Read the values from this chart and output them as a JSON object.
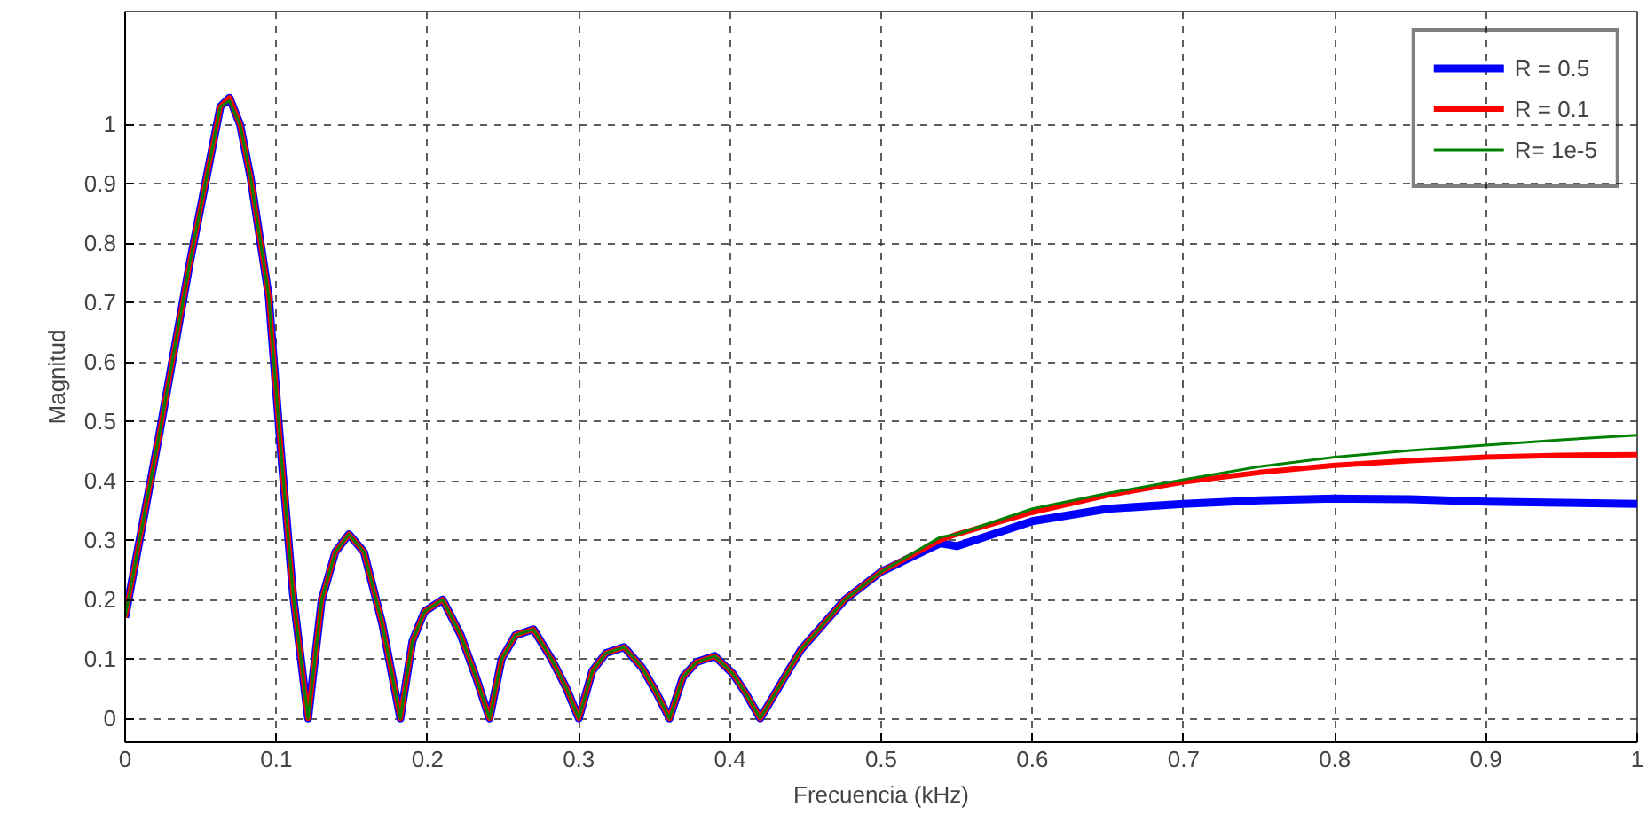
{
  "chart_data": {
    "type": "line",
    "xlabel": "Frecuencia (kHz)",
    "ylabel": "Magnitud",
    "xlim": [
      0,
      1
    ],
    "ylim": [
      -0.04,
      1.19
    ],
    "xticks": [
      0,
      0.1,
      0.2,
      0.3,
      0.4,
      0.5,
      0.6,
      0.7,
      0.8,
      0.9,
      1
    ],
    "yticks": [
      0,
      0.1,
      0.2,
      0.3,
      0.4,
      0.5,
      0.6,
      0.7,
      0.8,
      0.9,
      1
    ],
    "grid": true,
    "legend": "top right",
    "line_style": "solid",
    "marker": "none",
    "x": [
      0,
      0.022,
      0.043,
      0.063,
      0.069,
      0.076,
      0.083,
      0.095,
      0.103,
      0.111,
      0.121,
      0.13,
      0.139,
      0.148,
      0.158,
      0.17,
      0.182,
      0.19,
      0.198,
      0.21,
      0.222,
      0.232,
      0.241,
      0.249,
      0.258,
      0.27,
      0.282,
      0.292,
      0.3,
      0.309,
      0.318,
      0.33,
      0.342,
      0.351,
      0.36,
      0.369,
      0.378,
      0.39,
      0.402,
      0.411,
      0.42,
      0.447,
      0.476,
      0.5,
      0.539,
      0.55,
      0.6,
      0.65,
      0.7,
      0.75,
      0.8,
      0.85,
      0.9,
      0.95,
      1
    ],
    "series": [
      {
        "name": "R = 0.5",
        "color": "#0000ff",
        "values": [
          0.17,
          0.47,
          0.77,
          1.03,
          1.045,
          1.0,
          0.91,
          0.71,
          0.45,
          0.21,
          0,
          0.2,
          0.28,
          0.31,
          0.28,
          0.16,
          0,
          0.13,
          0.18,
          0.2,
          0.14,
          0.07,
          0,
          0.1,
          0.14,
          0.15,
          0.1,
          0.05,
          0,
          0.08,
          0.11,
          0.12,
          0.085,
          0.045,
          0,
          0.07,
          0.095,
          0.105,
          0.075,
          0.04,
          0,
          0.116,
          0.2,
          0.247,
          0.295,
          0.29,
          0.332,
          0.353,
          0.361,
          0.367,
          0.37,
          0.369,
          0.365,
          0.363,
          0.361
        ]
      },
      {
        "name": "R = 0.1",
        "color": "#ff0000",
        "values": [
          0.17,
          0.47,
          0.77,
          1.03,
          1.045,
          1.0,
          0.91,
          0.71,
          0.45,
          0.21,
          0,
          0.2,
          0.28,
          0.31,
          0.28,
          0.16,
          0,
          0.13,
          0.18,
          0.2,
          0.14,
          0.07,
          0,
          0.1,
          0.14,
          0.15,
          0.1,
          0.05,
          0,
          0.08,
          0.11,
          0.12,
          0.085,
          0.045,
          0,
          0.07,
          0.095,
          0.105,
          0.075,
          0.04,
          0,
          0.116,
          0.2,
          0.247,
          0.3,
          0.31,
          0.347,
          0.376,
          0.398,
          0.414,
          0.426,
          0.434,
          0.44,
          0.443,
          0.444
        ]
      },
      {
        "name": "R= 1e-5",
        "color": "#008000",
        "values": [
          0.17,
          0.47,
          0.77,
          1.03,
          1.04,
          1.0,
          0.91,
          0.71,
          0.45,
          0.21,
          0,
          0.2,
          0.28,
          0.31,
          0.28,
          0.16,
          0,
          0.13,
          0.18,
          0.2,
          0.14,
          0.07,
          0,
          0.1,
          0.14,
          0.15,
          0.1,
          0.05,
          0,
          0.08,
          0.11,
          0.12,
          0.085,
          0.045,
          0,
          0.07,
          0.095,
          0.105,
          0.075,
          0.04,
          0,
          0.116,
          0.2,
          0.247,
          0.305,
          0.31,
          0.353,
          0.379,
          0.402,
          0.424,
          0.44,
          0.451,
          0.46,
          0.469,
          0.477
        ]
      }
    ]
  }
}
